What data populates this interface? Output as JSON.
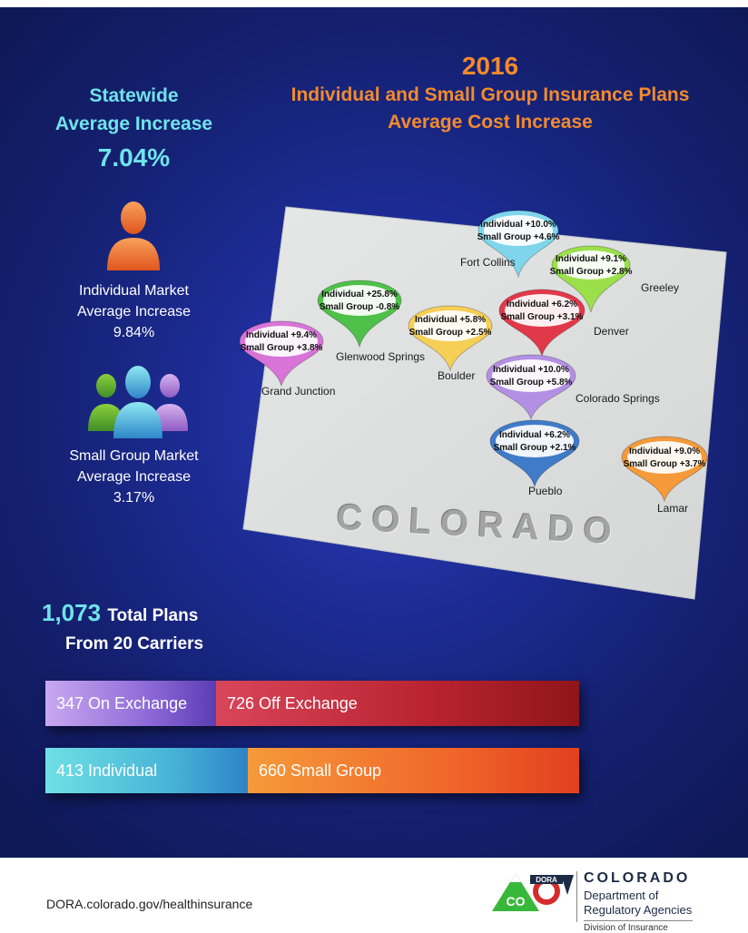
{
  "header": {
    "year": "2016",
    "line1": "Individual and Small Group Insurance Plans",
    "line2": "Average Cost Increase"
  },
  "statewide": {
    "line1": "Statewide",
    "line2": "Average Increase",
    "value": "7.04%"
  },
  "individual_market": {
    "line1": "Individual Market",
    "line2": "Average Increase",
    "value": "9.84%"
  },
  "small_group_market": {
    "line1": "Small Group Market",
    "line2": "Average Increase",
    "value": "3.17%"
  },
  "totals": {
    "count": "1,073",
    "label": "Total Plans",
    "carriers": "From 20 Carriers"
  },
  "bars": {
    "exchange": {
      "on_label": "347 On Exchange",
      "off_label": "726 Off Exchange",
      "on_value": 347,
      "off_value": 726
    },
    "market": {
      "individual_label": "413 Individual",
      "small_group_label": "660 Small Group",
      "individual_value": 413,
      "small_group_value": 660
    }
  },
  "map": {
    "state_label": "COLORADO",
    "cities": [
      {
        "name": "Fort Collins",
        "individual": "Individual +10.0%",
        "small_group": "Small Group +4.6%",
        "color": "#7fd6ec"
      },
      {
        "name": "Greeley",
        "individual": "Individual +9.1%",
        "small_group": "Small Group +2.8%",
        "color": "#9be04a"
      },
      {
        "name": "Glenwood Springs",
        "individual": "Individual +25.8%",
        "small_group": "Small Group -0.8%",
        "color": "#4fc04a"
      },
      {
        "name": "Boulder",
        "individual": "Individual +5.8%",
        "small_group": "Small Group +2.5%",
        "color": "#f6cf57"
      },
      {
        "name": "Denver",
        "individual": "Individual +6.2%",
        "small_group": "Small Group +3.1%",
        "color": "#e2394a"
      },
      {
        "name": "Grand Junction",
        "individual": "Individual +9.4%",
        "small_group": "Small Group +3.8%",
        "color": "#d874d8"
      },
      {
        "name": "Colorado Springs",
        "individual": "Individual +10.0%",
        "small_group": "Small Group +5.8%",
        "color": "#b490e4"
      },
      {
        "name": "Pueblo",
        "individual": "Individual +6.2%",
        "small_group": "Small Group +2.1%",
        "color": "#3f7bc8"
      },
      {
        "name": "Lamar",
        "individual": "Individual +9.0%",
        "small_group": "Small Group +3.7%",
        "color": "#f59a3a"
      }
    ]
  },
  "colors": {
    "background": "#1d2c96",
    "title": "#f28a2e",
    "accent": "#6fe3ea",
    "on_exchange": "#8e6ad8",
    "off_exchange": "#b8232f",
    "individual": "#49b5d8",
    "small_group": "#f0672a"
  },
  "icons": {
    "individual": "person-icon",
    "small_group": "group-icon"
  },
  "footer": {
    "url": "DORA.colorado.gov/healthinsurance",
    "logo_badge_top": "DORA",
    "logo_badge_co": "CO",
    "logo_state": "COLORADO",
    "logo_dept_line1": "Department of",
    "logo_dept_line2": "Regulatory Agencies",
    "logo_division": "Division of Insurance"
  }
}
